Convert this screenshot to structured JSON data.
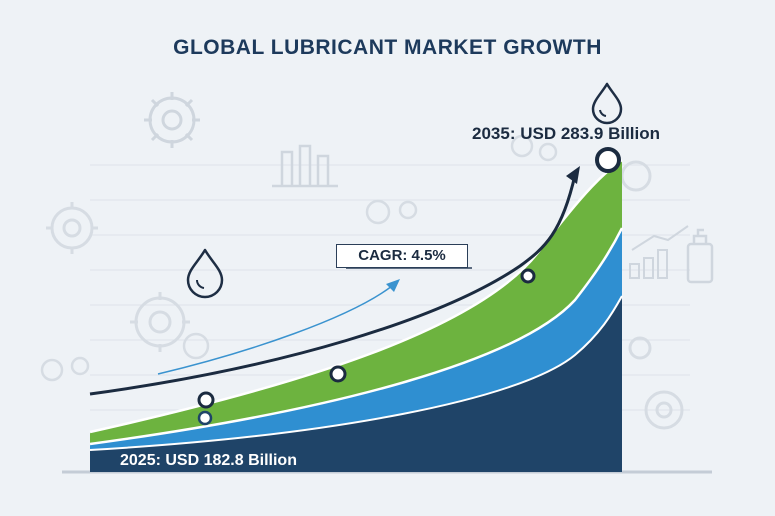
{
  "title": "GLOBAL LUBRICANT MARKET GROWTH",
  "labels": {
    "end": "2035: USD 283.9 Billion",
    "start": "2025: USD 182.8 Billion",
    "cagr": "CAGR: 4.5%"
  },
  "colors": {
    "background": "#eef2f6",
    "title": "#1d3a5c",
    "layer_top": "#6db33f",
    "layer_mid": "#2f8fd1",
    "layer_base": "#1f4468",
    "trend_arrow": "#1b2b40",
    "thin_arrow": "#3a93cf"
  },
  "icons": [
    "gear-icon",
    "oil-drop-icon",
    "factory-icon",
    "bar-chart-icon",
    "oil-bottle-icon"
  ],
  "chart_data": {
    "type": "area",
    "title": "GLOBAL LUBRICANT MARKET GROWTH",
    "x": [
      2025,
      2035
    ],
    "start_value": 182.8,
    "end_value": 283.9,
    "unit": "USD Billion",
    "cagr_percent": 4.5,
    "series_layers": 3,
    "grid": true
  }
}
